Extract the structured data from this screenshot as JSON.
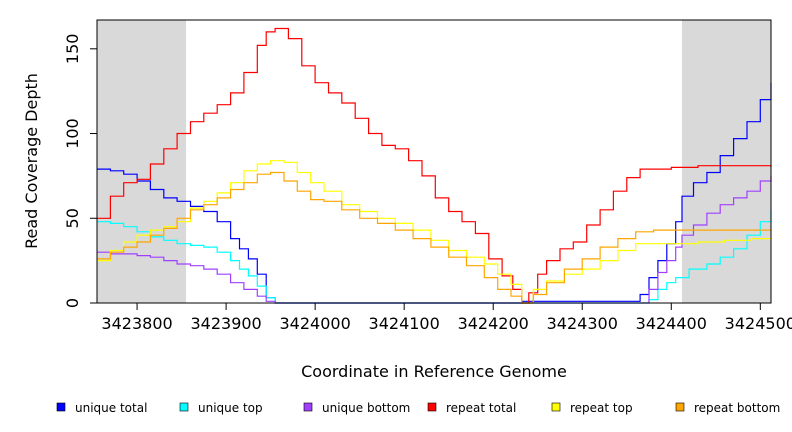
{
  "chart_data": {
    "type": "line",
    "title": "",
    "xlabel": "Coordinate in Reference Genome",
    "ylabel": "Read Coverage Depth",
    "xlim": [
      3423755,
      3424512
    ],
    "ylim": [
      0,
      167
    ],
    "x_ticks": [
      3423800,
      3423900,
      3424000,
      3424100,
      3424200,
      3424300,
      3424400,
      3424500
    ],
    "y_ticks": [
      0,
      50,
      100,
      150
    ],
    "shaded_regions": [
      [
        3423755,
        3423855
      ],
      [
        3424412,
        3424512
      ]
    ],
    "shade_color": "#d9d9d9",
    "grid": false,
    "legend_position": "bottom",
    "series": [
      {
        "name": "unique total",
        "color": "#0000ff",
        "x": [
          3423755,
          3423770,
          3423785,
          3423800,
          3423815,
          3423830,
          3423845,
          3423860,
          3423875,
          3423890,
          3423905,
          3423915,
          3423925,
          3423935,
          3423945,
          3423955,
          3423980,
          3424050,
          3424150,
          3424232,
          3424233,
          3424300,
          3424360,
          3424365,
          3424375,
          3424385,
          3424395,
          3424405,
          3424412,
          3424425,
          3424440,
          3424455,
          3424470,
          3424485,
          3424500,
          3424512
        ],
        "values": [
          79,
          78,
          76,
          72,
          67,
          62,
          60,
          57,
          54,
          48,
          38,
          32,
          26,
          17,
          3,
          0,
          0,
          0,
          0,
          0,
          1,
          1,
          1,
          5,
          15,
          25,
          35,
          48,
          63,
          71,
          77,
          87,
          97,
          107,
          120,
          130
        ]
      },
      {
        "name": "unique top",
        "color": "#00ffff",
        "x": [
          3423755,
          3423770,
          3423785,
          3423800,
          3423815,
          3423830,
          3423845,
          3423860,
          3423875,
          3423890,
          3423905,
          3423915,
          3423925,
          3423935,
          3423945,
          3423955,
          3423980,
          3424050,
          3424150,
          3424300,
          3424360,
          3424375,
          3424385,
          3424395,
          3424405,
          3424420,
          3424440,
          3424455,
          3424470,
          3424485,
          3424500,
          3424512
        ],
        "values": [
          48,
          47,
          45,
          42,
          39,
          37,
          35,
          34,
          33,
          30,
          25,
          20,
          16,
          10,
          3,
          0,
          0,
          0,
          0,
          0,
          0,
          2,
          8,
          12,
          15,
          20,
          23,
          27,
          32,
          40,
          48,
          55
        ]
      },
      {
        "name": "unique bottom",
        "color": "#a040ff",
        "x": [
          3423755,
          3423770,
          3423785,
          3423800,
          3423815,
          3423830,
          3423845,
          3423860,
          3423875,
          3423890,
          3423905,
          3423920,
          3423935,
          3423945,
          3423955,
          3423980,
          3424050,
          3424150,
          3424300,
          3424365,
          3424375,
          3424385,
          3424395,
          3424405,
          3424412,
          3424425,
          3424440,
          3424455,
          3424470,
          3424485,
          3424500,
          3424512
        ],
        "values": [
          30,
          29,
          29,
          28,
          27,
          25,
          23,
          22,
          20,
          17,
          12,
          8,
          4,
          1,
          0,
          0,
          0,
          0,
          0,
          0,
          8,
          18,
          25,
          33,
          40,
          46,
          53,
          58,
          62,
          66,
          72,
          75
        ]
      },
      {
        "name": "repeat total",
        "color": "#ff0000",
        "x": [
          3423755,
          3423770,
          3423785,
          3423800,
          3423815,
          3423830,
          3423845,
          3423860,
          3423875,
          3423890,
          3423905,
          3423920,
          3423935,
          3423945,
          3423955,
          3423970,
          3423985,
          3424000,
          3424015,
          3424030,
          3424045,
          3424060,
          3424075,
          3424090,
          3424105,
          3424120,
          3424135,
          3424150,
          3424165,
          3424180,
          3424195,
          3424210,
          3424222,
          3424232,
          3424240,
          3424250,
          3424260,
          3424275,
          3424290,
          3424305,
          3424320,
          3424335,
          3424350,
          3424365,
          3424380,
          3424400,
          3424430,
          3424460,
          3424490,
          3424512
        ],
        "values": [
          50,
          63,
          71,
          73,
          82,
          91,
          100,
          107,
          112,
          117,
          124,
          136,
          152,
          160,
          162,
          156,
          140,
          130,
          124,
          118,
          109,
          100,
          93,
          91,
          84,
          75,
          62,
          54,
          48,
          41,
          26,
          16,
          8,
          0,
          6,
          17,
          25,
          32,
          36,
          46,
          55,
          66,
          74,
          79,
          79,
          80,
          81,
          81,
          81,
          80
        ]
      },
      {
        "name": "repeat top",
        "color": "#ffff00",
        "x": [
          3423755,
          3423770,
          3423785,
          3423800,
          3423815,
          3423830,
          3423845,
          3423860,
          3423875,
          3423890,
          3423905,
          3423920,
          3423935,
          3423950,
          3423965,
          3423980,
          3423995,
          3424010,
          3424030,
          3424050,
          3424070,
          3424090,
          3424110,
          3424130,
          3424150,
          3424170,
          3424190,
          3424205,
          3424220,
          3424232,
          3424245,
          3424260,
          3424280,
          3424300,
          3424320,
          3424340,
          3424360,
          3424380,
          3424400,
          3424430,
          3424460,
          3424490,
          3424512
        ],
        "values": [
          25,
          31,
          36,
          40,
          43,
          45,
          48,
          56,
          60,
          65,
          71,
          78,
          82,
          84,
          83,
          77,
          71,
          66,
          58,
          54,
          50,
          47,
          43,
          37,
          31,
          27,
          23,
          17,
          11,
          0,
          8,
          13,
          17,
          20,
          25,
          31,
          35,
          35,
          35,
          36,
          37,
          38,
          39
        ]
      },
      {
        "name": "repeat bottom",
        "color": "#ffa500",
        "x": [
          3423755,
          3423770,
          3423785,
          3423800,
          3423815,
          3423830,
          3423845,
          3423860,
          3423875,
          3423890,
          3423905,
          3423920,
          3423935,
          3423950,
          3423965,
          3423980,
          3423995,
          3424010,
          3424030,
          3424050,
          3424070,
          3424090,
          3424110,
          3424130,
          3424150,
          3424170,
          3424190,
          3424205,
          3424220,
          3424232,
          3424245,
          3424260,
          3424280,
          3424300,
          3424320,
          3424340,
          3424360,
          3424380,
          3424400,
          3424430,
          3424460,
          3424490,
          3424512
        ],
        "values": [
          26,
          30,
          33,
          36,
          40,
          44,
          50,
          55,
          58,
          62,
          67,
          71,
          76,
          77,
          72,
          66,
          61,
          60,
          55,
          50,
          47,
          43,
          38,
          33,
          27,
          22,
          15,
          8,
          4,
          0,
          5,
          12,
          20,
          26,
          33,
          38,
          42,
          43,
          43,
          43,
          43,
          43,
          43
        ]
      }
    ]
  }
}
